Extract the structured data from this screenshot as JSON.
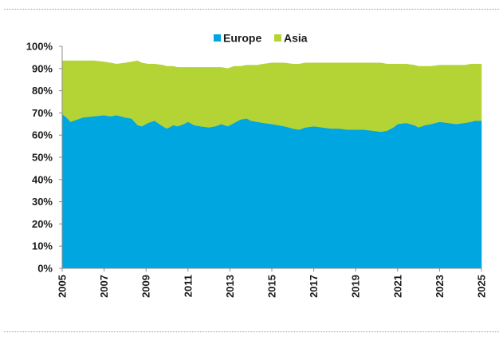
{
  "chart_data": {
    "type": "area",
    "stacked": true,
    "title": "",
    "xlabel": "",
    "ylabel": "",
    "ylim": [
      0,
      100
    ],
    "y_ticks": [
      "0%",
      "10%",
      "20%",
      "30%",
      "40%",
      "50%",
      "60%",
      "70%",
      "80%",
      "90%",
      "100%"
    ],
    "x_ticks": [
      "2005",
      "2007",
      "2009",
      "2011",
      "2013",
      "2015",
      "2017",
      "2019",
      "2021",
      "2023",
      "2025"
    ],
    "xlim": [
      2005,
      2025
    ],
    "grid": false,
    "legend": "top-center",
    "x": [
      2005.0,
      2005.2,
      2005.4,
      2005.7,
      2006.0,
      2006.5,
      2007.0,
      2007.3,
      2007.6,
      2008.0,
      2008.3,
      2008.6,
      2008.8,
      2009.1,
      2009.4,
      2009.8,
      2010.0,
      2010.3,
      2010.5,
      2010.8,
      2011.0,
      2011.3,
      2011.6,
      2012.0,
      2012.3,
      2012.6,
      2012.9,
      2013.2,
      2013.5,
      2013.8,
      2014.0,
      2014.3,
      2014.6,
      2015.0,
      2015.3,
      2015.6,
      2016.0,
      2016.3,
      2016.6,
      2017.0,
      2017.4,
      2017.8,
      2018.2,
      2018.6,
      2019.0,
      2019.4,
      2019.8,
      2020.2,
      2020.5,
      2020.8,
      2021.0,
      2021.4,
      2021.8,
      2022.0,
      2022.3,
      2022.6,
      2023.0,
      2023.4,
      2023.8,
      2024.2,
      2024.5,
      2024.7,
      2025.0
    ],
    "series": [
      {
        "name": "Europe",
        "color": "#00a6e0",
        "values": [
          69.5,
          68.0,
          66.0,
          67.0,
          68.0,
          68.5,
          69.0,
          68.5,
          69.0,
          68.0,
          67.5,
          64.5,
          64.0,
          65.5,
          66.5,
          64.0,
          63.0,
          64.5,
          64.0,
          65.0,
          66.0,
          64.5,
          64.0,
          63.5,
          64.0,
          65.0,
          64.0,
          65.5,
          67.0,
          67.5,
          66.5,
          66.0,
          65.5,
          65.0,
          64.5,
          64.0,
          63.0,
          62.5,
          63.5,
          64.0,
          63.5,
          63.0,
          63.0,
          62.5,
          62.5,
          62.5,
          62.0,
          61.5,
          62.0,
          63.5,
          65.0,
          65.5,
          64.5,
          63.5,
          64.5,
          65.0,
          66.0,
          65.5,
          65.0,
          65.5,
          66.0,
          66.5,
          66.5
        ]
      },
      {
        "name": "Asia",
        "color": "#b4d335",
        "values": [
          24.0,
          25.5,
          27.5,
          26.5,
          25.5,
          25.0,
          24.0,
          24.0,
          23.0,
          24.5,
          25.5,
          29.0,
          28.5,
          26.5,
          25.5,
          27.5,
          28.0,
          26.5,
          26.5,
          25.5,
          24.5,
          26.0,
          26.5,
          27.0,
          26.5,
          25.5,
          26.0,
          25.5,
          24.0,
          24.0,
          25.0,
          25.5,
          26.5,
          27.5,
          28.0,
          28.5,
          29.0,
          29.5,
          29.0,
          28.5,
          29.0,
          29.5,
          29.5,
          30.0,
          30.0,
          30.0,
          30.5,
          31.0,
          30.0,
          28.5,
          27.0,
          26.5,
          27.0,
          27.5,
          26.5,
          26.0,
          25.5,
          26.0,
          26.5,
          26.0,
          26.0,
          25.5,
          25.5
        ]
      }
    ]
  }
}
